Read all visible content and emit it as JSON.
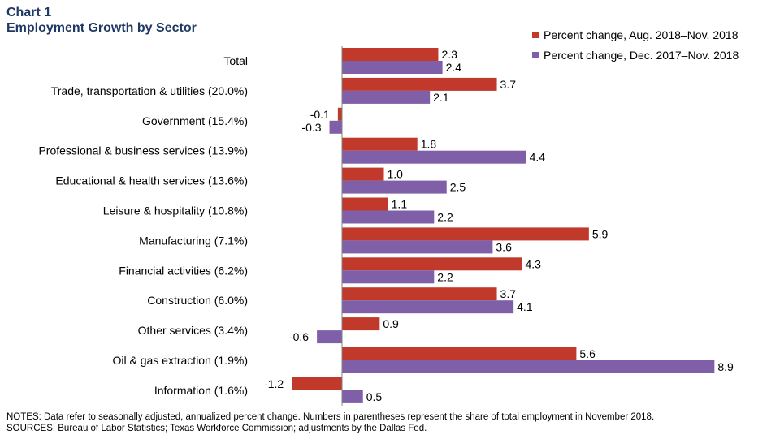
{
  "header": {
    "chart_label": "Chart 1",
    "chart_title": "Employment Growth by Sector"
  },
  "colors": {
    "series1": "#c0392b",
    "series2": "#7f60a8"
  },
  "notes": {
    "line1": "NOTES: Data refer to seasonally adjusted, annualized percent change. Numbers in parentheses represent the share of total employment in November 2018.",
    "line2": "SOURCES: Bureau of Labor Statistics; Texas Workforce Commission; adjustments by the Dallas Fed."
  },
  "chart_data": {
    "type": "bar",
    "orientation": "horizontal",
    "title": "Employment Growth by Sector",
    "legend_position": "top-right",
    "grid": false,
    "categories": [
      "Total",
      "Trade, transportation & utilities (20.0%)",
      "Government (15.4%)",
      "Professional & business services (13.9%)",
      "Educational & health services (13.6%)",
      "Leisure & hospitality (10.8%)",
      "Manufacturing (7.1%)",
      "Financial activities (6.2%)",
      "Construction (6.0%)",
      "Other services (3.4%)",
      "Oil & gas extraction (1.9%)",
      "Information (1.6%)"
    ],
    "series": [
      {
        "name": "Percent change, Aug. 2018–Nov. 2018",
        "color": "#c0392b",
        "values": [
          2.3,
          3.7,
          -0.1,
          1.8,
          1.0,
          1.1,
          5.9,
          4.3,
          3.7,
          0.9,
          5.6,
          -1.2
        ],
        "labels": [
          "2.3",
          "3.7",
          "-0.1",
          "1.8",
          "1.0",
          "1.1",
          "5.9",
          "4.3",
          "3.7",
          "0.9",
          "5.6",
          "-1.2"
        ]
      },
      {
        "name": "Percent change, Dec. 2017–Nov. 2018",
        "color": "#7f60a8",
        "values": [
          2.4,
          2.1,
          -0.3,
          4.4,
          2.5,
          2.2,
          3.6,
          2.2,
          4.1,
          -0.6,
          8.9,
          0.5
        ],
        "labels": [
          "2.4",
          "2.1",
          "-0.3",
          "4.4",
          "2.5",
          "2.2",
          "3.6",
          "2.2",
          "4.1",
          "-0.6",
          "8.9",
          "0.5"
        ]
      }
    ]
  }
}
